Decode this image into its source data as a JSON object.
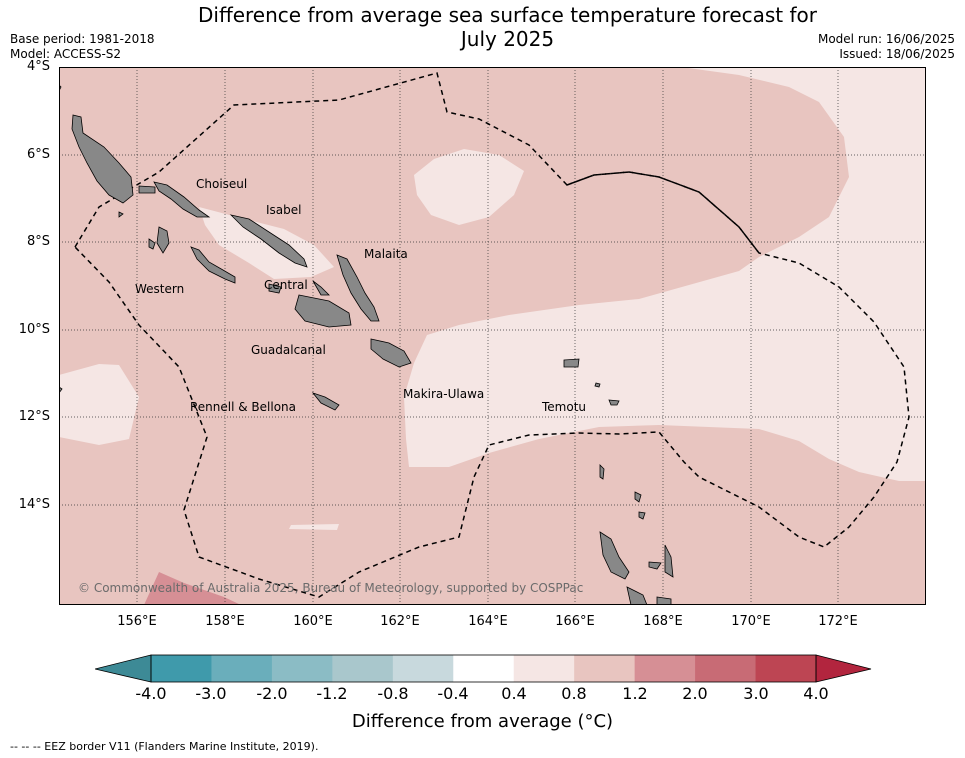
{
  "title_line1": "Difference from average sea surface temperature forecast for",
  "title_line2": "July 2025",
  "base_period": "Base period: 1981-2018",
  "model": "Model: ACCESS-S2",
  "model_run": "Model run: 16/06/2025",
  "issued": "Issued: 18/06/2025",
  "lat_ticks": [
    "4°S",
    "6°S",
    "8°S",
    "10°S",
    "12°S",
    "14°S"
  ],
  "lon_ticks": [
    "156°E",
    "158°E",
    "160°E",
    "162°E",
    "164°E",
    "166°E",
    "168°E",
    "170°E",
    "172°E"
  ],
  "regions": [
    "Choiseul",
    "Isabel",
    "Malaita",
    "Western",
    "Central",
    "Guadalcanal",
    "Makira-Ulawa",
    "Rennell & Bellona",
    "Temotu"
  ],
  "copyright": "© Commonwealth of Australia 2025, Bureau of Meteorology, supported by COSPPac",
  "colorbar": {
    "ticks": [
      "-4.0",
      "-3.0",
      "-2.0",
      "-1.2",
      "-0.8",
      "-0.4",
      "0.4",
      "0.8",
      "1.2",
      "2.0",
      "3.0",
      "4.0"
    ],
    "colors": [
      "#3f9aab",
      "#6aaebb",
      "#8bbcc5",
      "#a9c7cc",
      "#c8d9dd",
      "#ffffff",
      "#f5e6e4",
      "#e8c5c0",
      "#d68f95",
      "#c86b75",
      "#bd4553"
    ],
    "under_color": "#3d8a96",
    "over_color": "#b2253e",
    "label": "Difference from average (",
    "label_unit": "°C)"
  },
  "footer": "-- -- -- EEZ border V11 (Flanders Marine Institute, 2019).",
  "colors": {
    "warm_0_4_0_8": "#f5e6e4",
    "warm_0_8_1_2": "#e8c5c0",
    "warm_1_2_2_0": "#d68f95",
    "land": "#888888"
  }
}
